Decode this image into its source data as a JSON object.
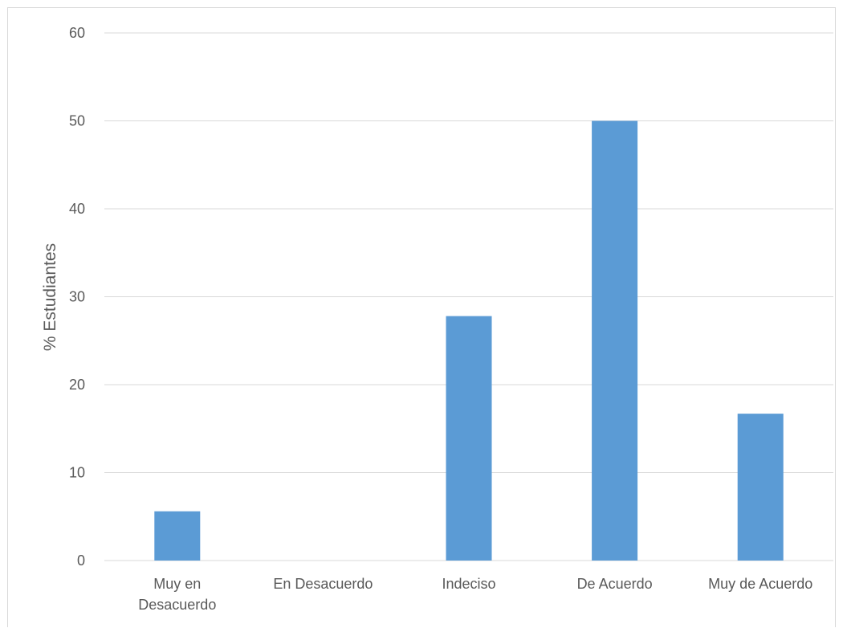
{
  "chart_data": {
    "type": "bar",
    "title": "",
    "xlabel": "",
    "ylabel": "% Estudiantes",
    "categories": [
      [
        "Muy en",
        "Desacuerdo"
      ],
      [
        "En Desacuerdo"
      ],
      [
        "Indeciso"
      ],
      [
        "De Acuerdo"
      ],
      [
        "Muy de Acuerdo"
      ]
    ],
    "values": [
      5.6,
      0,
      27.8,
      50,
      16.7
    ],
    "ylim": [
      0,
      60
    ],
    "yticks": [
      0,
      10,
      20,
      30,
      40,
      50,
      60
    ],
    "grid": true,
    "legend": "none",
    "bar_color": "#5b9bd5",
    "grid_color": "#d9d9d9",
    "text_color": "#595959"
  }
}
